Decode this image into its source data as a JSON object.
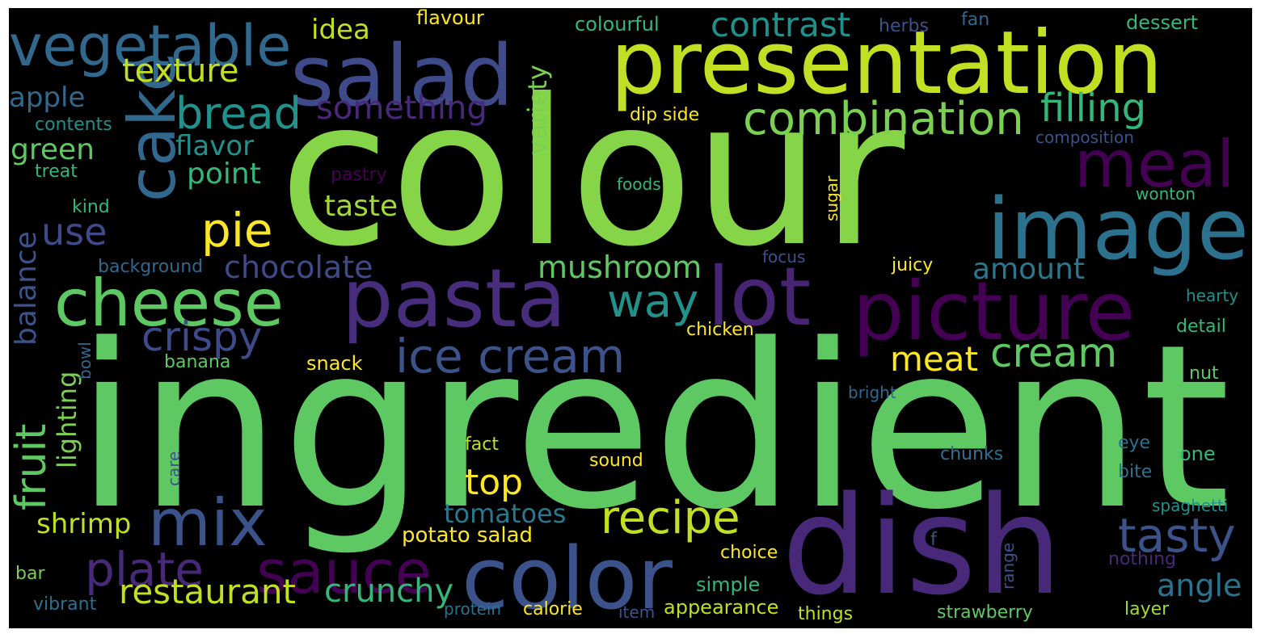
{
  "words": [
    {
      "text": "colour",
      "color": "#86d549"
    },
    {
      "text": "ingredient",
      "color": "#5ec962"
    },
    {
      "text": "presentation",
      "color": "#c2df23"
    },
    {
      "text": "salad",
      "color": "#3e4a89"
    },
    {
      "text": "image",
      "color": "#2c728e"
    },
    {
      "text": "dish",
      "color": "#482878"
    },
    {
      "text": "pasta",
      "color": "#472d7b"
    },
    {
      "text": "picture",
      "color": "#440154"
    },
    {
      "text": "color",
      "color": "#3b528b"
    },
    {
      "text": "cake",
      "color": "#31688e"
    },
    {
      "text": "vegetable",
      "color": "#31688e"
    },
    {
      "text": "cheese",
      "color": "#5ec962"
    },
    {
      "text": "lot",
      "color": "#482475"
    },
    {
      "text": "meal",
      "color": "#440154"
    },
    {
      "text": "sauce",
      "color": "#440154"
    },
    {
      "text": "mix",
      "color": "#3b528b"
    },
    {
      "text": "ice cream",
      "color": "#3b528b"
    },
    {
      "text": "tasty",
      "color": "#3b528b"
    },
    {
      "text": "plate",
      "color": "#482878"
    },
    {
      "text": "recipe",
      "color": "#c2df23"
    },
    {
      "text": "combination",
      "color": "#7ad151"
    },
    {
      "text": "bread",
      "color": "#21918c"
    },
    {
      "text": "pie",
      "color": "#fde725"
    },
    {
      "text": "filling",
      "color": "#35b779"
    },
    {
      "text": "way",
      "color": "#21918c"
    },
    {
      "text": "cream",
      "color": "#5ec962"
    },
    {
      "text": "contrast",
      "color": "#21918c"
    },
    {
      "text": "crispy",
      "color": "#3e4a89"
    },
    {
      "text": "fruit",
      "color": "#5ec962"
    },
    {
      "text": "meat",
      "color": "#fde725"
    },
    {
      "text": "mushroom",
      "color": "#5ec962"
    },
    {
      "text": "restaurant",
      "color": "#c2df23"
    },
    {
      "text": "crunchy",
      "color": "#35b779"
    },
    {
      "text": "top",
      "color": "#fde725"
    },
    {
      "text": "texture",
      "color": "#c2df23"
    },
    {
      "text": "something",
      "color": "#482878"
    },
    {
      "text": "use",
      "color": "#3e4a89"
    },
    {
      "text": "chocolate",
      "color": "#3e4a89"
    },
    {
      "text": "balance",
      "color": "#3b528b"
    },
    {
      "text": "angle",
      "color": "#2c728e"
    },
    {
      "text": "amount",
      "color": "#2a788e"
    },
    {
      "text": "variety",
      "color": "#7ad151"
    },
    {
      "text": "tomatoes",
      "color": "#2a788e"
    },
    {
      "text": "taste",
      "color": "#a0da39"
    },
    {
      "text": "shrimp",
      "color": "#c2df23"
    },
    {
      "text": "point",
      "color": "#35b779"
    },
    {
      "text": "flavor",
      "color": "#21918c"
    },
    {
      "text": "green",
      "color": "#5ec962"
    },
    {
      "text": "lighting",
      "color": "#7ad151"
    },
    {
      "text": "apple",
      "color": "#31688e"
    },
    {
      "text": "idea",
      "color": "#c2df23"
    },
    {
      "text": "potato salad",
      "color": "#fde725"
    },
    {
      "text": "appearance",
      "color": "#c2df23"
    },
    {
      "text": "flavour",
      "color": "#fde725"
    },
    {
      "text": "colourful",
      "color": "#35b779"
    },
    {
      "text": "herbs",
      "color": "#3b528b"
    },
    {
      "text": "fan",
      "color": "#31688e"
    },
    {
      "text": "dessert",
      "color": "#35b779"
    },
    {
      "text": "contents",
      "color": "#21918c"
    },
    {
      "text": "treat",
      "color": "#35b779"
    },
    {
      "text": "kind",
      "color": "#35b779"
    },
    {
      "text": "background",
      "color": "#31688e"
    },
    {
      "text": "banana",
      "color": "#5ec962"
    },
    {
      "text": "snack",
      "color": "#fde725"
    },
    {
      "text": "bowl",
      "color": "#31688e"
    },
    {
      "text": "care",
      "color": "#3b528b"
    },
    {
      "text": "fact",
      "color": "#c2df23"
    },
    {
      "text": "sound",
      "color": "#fde725"
    },
    {
      "text": "chunks",
      "color": "#2c728e"
    },
    {
      "text": "eye",
      "color": "#2c728e"
    },
    {
      "text": "one",
      "color": "#35b779"
    },
    {
      "text": "bite",
      "color": "#2c728e"
    },
    {
      "text": "spaghetti",
      "color": "#21918c"
    },
    {
      "text": "nothing",
      "color": "#482878"
    },
    {
      "text": "range",
      "color": "#3b528b"
    },
    {
      "text": "choice",
      "color": "#fde725"
    },
    {
      "text": "simple",
      "color": "#35b779"
    },
    {
      "text": "f",
      "color": "#3b528b"
    },
    {
      "text": "bar",
      "color": "#7ad151"
    },
    {
      "text": "vibrant",
      "color": "#2c728e"
    },
    {
      "text": "protein",
      "color": "#2c728e"
    },
    {
      "text": "calorie",
      "color": "#fde725"
    },
    {
      "text": "item",
      "color": "#3b528b"
    },
    {
      "text": "things",
      "color": "#c2df23"
    },
    {
      "text": "strawberry",
      "color": "#5ec962"
    },
    {
      "text": "layer",
      "color": "#a0da39"
    },
    {
      "text": "dip side",
      "color": "#fde725"
    },
    {
      "text": "pastry",
      "color": "#440154"
    },
    {
      "text": "foods",
      "color": "#35b779"
    },
    {
      "text": "sugar",
      "color": "#fde725"
    },
    {
      "text": "composition",
      "color": "#3b528b"
    },
    {
      "text": "wonton",
      "color": "#35b779"
    },
    {
      "text": "focus",
      "color": "#3b528b"
    },
    {
      "text": "juicy",
      "color": "#fde725"
    },
    {
      "text": "hearty",
      "color": "#21918c"
    },
    {
      "text": "detail",
      "color": "#35b779"
    },
    {
      "text": "chicken",
      "color": "#fde725"
    },
    {
      "text": "bright",
      "color": "#31688e"
    },
    {
      "text": "nut",
      "color": "#5ec962"
    }
  ]
}
